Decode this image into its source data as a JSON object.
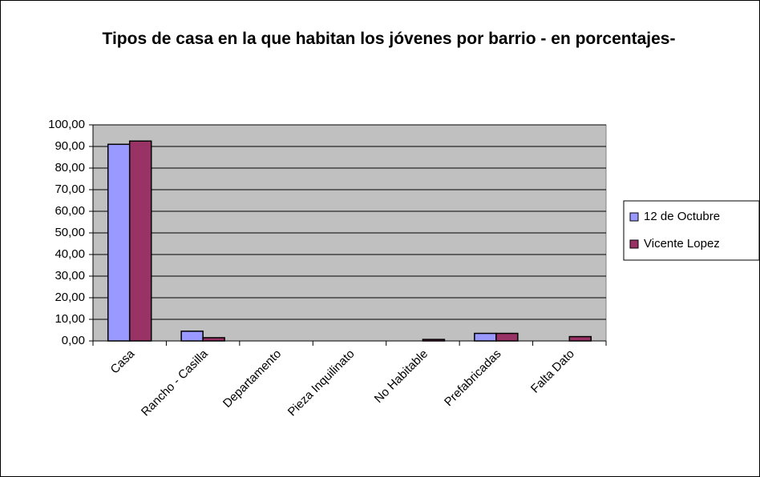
{
  "chart_data": {
    "type": "bar",
    "title": "Tipos de casa en la que habitan los jóvenes por barrio - en porcentajes-",
    "categories": [
      "Casa",
      "Rancho - Casilla",
      "Departamento",
      "Pieza Inquilinato",
      "No Habitable",
      "Prefabricadas",
      "Falta Dato"
    ],
    "series": [
      {
        "name": "12 de Octubre",
        "color": "#9999ff",
        "values": [
          91,
          4.5,
          0,
          0,
          0,
          3.5,
          0
        ]
      },
      {
        "name": "Vicente Lopez",
        "color": "#993366",
        "values": [
          92.5,
          1.5,
          0,
          0,
          0.7,
          3.5,
          2
        ]
      }
    ],
    "ylim": [
      0,
      100
    ],
    "yticks": [
      {
        "value": 0,
        "label": "0,00"
      },
      {
        "value": 10,
        "label": "10,00"
      },
      {
        "value": 20,
        "label": "20,00"
      },
      {
        "value": 30,
        "label": "30,00"
      },
      {
        "value": 40,
        "label": "40,00"
      },
      {
        "value": 50,
        "label": "50,00"
      },
      {
        "value": 60,
        "label": "60,00"
      },
      {
        "value": 70,
        "label": "70,00"
      },
      {
        "value": 80,
        "label": "80,00"
      },
      {
        "value": 90,
        "label": "90,00"
      },
      {
        "value": 100,
        "label": "100,00"
      }
    ],
    "grid": true,
    "legend": "right"
  }
}
